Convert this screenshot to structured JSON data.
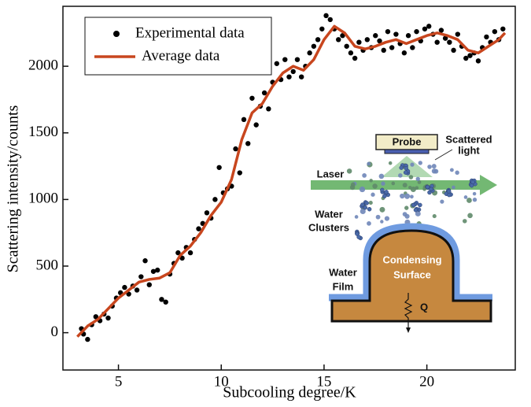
{
  "chart_data": {
    "type": "scatter-line",
    "x_label": "Subcooling degree/K",
    "y_label": "Scattering intensity/counts",
    "xlim": [
      2.3,
      24.3
    ],
    "ylim": [
      -280,
      2450
    ],
    "xticks": [
      5,
      10,
      15,
      20
    ],
    "yticks": [
      0,
      500,
      1000,
      1500,
      2000
    ],
    "legend": "top-left",
    "series": [
      {
        "name": "Experimental data",
        "type": "scatter",
        "color": "#000000",
        "x": [
          3.2,
          3.3,
          3.5,
          3.7,
          3.9,
          4.1,
          4.3,
          4.5,
          4.7,
          4.9,
          5.1,
          5.3,
          5.5,
          5.7,
          5.9,
          6.1,
          6.3,
          6.5,
          6.7,
          6.9,
          7.1,
          7.3,
          7.5,
          7.7,
          7.9,
          8.1,
          8.3,
          8.5,
          8.7,
          8.9,
          9.1,
          9.3,
          9.5,
          9.7,
          9.9,
          10.1,
          10.3,
          10.5,
          10.7,
          10.9,
          11.1,
          11.3,
          11.5,
          11.7,
          11.9,
          12.1,
          12.3,
          12.5,
          12.7,
          12.9,
          13.1,
          13.3,
          13.5,
          13.7,
          13.9,
          14.1,
          14.3,
          14.5,
          14.7,
          14.9,
          15.1,
          15.3,
          15.5,
          15.7,
          15.9,
          16.1,
          16.3,
          16.5,
          16.7,
          16.9,
          17.1,
          17.3,
          17.5,
          17.7,
          17.9,
          18.1,
          18.3,
          18.5,
          18.7,
          18.9,
          19.1,
          19.3,
          19.5,
          19.7,
          19.9,
          20.1,
          20.3,
          20.5,
          20.7,
          20.9,
          21.1,
          21.3,
          21.5,
          21.7,
          21.9,
          22.1,
          22.3,
          22.5,
          22.7,
          22.9,
          23.1,
          23.3,
          23.5,
          23.7
        ],
        "values": [
          30,
          -10,
          -50,
          60,
          120,
          90,
          140,
          110,
          200,
          260,
          300,
          340,
          290,
          350,
          320,
          420,
          540,
          360,
          460,
          470,
          250,
          230,
          440,
          520,
          600,
          560,
          640,
          600,
          700,
          780,
          820,
          900,
          860,
          1000,
          1240,
          1050,
          1080,
          1100,
          1380,
          1200,
          1600,
          1420,
          1760,
          1560,
          1700,
          1800,
          1680,
          1880,
          2020,
          1900,
          2050,
          1920,
          1960,
          2050,
          1920,
          2000,
          2100,
          2150,
          2200,
          2280,
          2380,
          2350,
          2280,
          2200,
          2230,
          2150,
          2100,
          2060,
          2180,
          2120,
          2200,
          2140,
          2230,
          2190,
          2120,
          2260,
          2140,
          2240,
          2170,
          2100,
          2230,
          2140,
          2260,
          2190,
          2280,
          2300,
          2240,
          2180,
          2270,
          2210,
          2180,
          2120,
          2240,
          2150,
          2060,
          2080,
          2100,
          2040,
          2140,
          2220,
          2180,
          2260,
          2200,
          2280
        ]
      },
      {
        "name": "Average data",
        "type": "line",
        "color": "#c8461e",
        "x": [
          3.0,
          3.5,
          4.0,
          4.5,
          5.0,
          5.5,
          6.0,
          6.5,
          7.0,
          7.5,
          8.0,
          8.5,
          9.0,
          9.5,
          10.0,
          10.5,
          11.0,
          11.5,
          12.0,
          12.5,
          13.0,
          13.5,
          14.0,
          14.5,
          15.0,
          15.5,
          16.0,
          16.5,
          17.0,
          17.5,
          18.0,
          18.5,
          19.0,
          19.5,
          20.0,
          20.5,
          21.0,
          21.5,
          22.0,
          22.5,
          23.0,
          23.5,
          23.8
        ],
        "values": [
          -30,
          50,
          100,
          180,
          260,
          320,
          380,
          400,
          410,
          450,
          580,
          650,
          750,
          880,
          980,
          1150,
          1450,
          1650,
          1720,
          1850,
          1950,
          2000,
          1970,
          2050,
          2200,
          2300,
          2250,
          2150,
          2130,
          2150,
          2180,
          2200,
          2170,
          2200,
          2230,
          2250,
          2230,
          2200,
          2120,
          2100,
          2150,
          2200,
          2250
        ]
      }
    ],
    "inset": {
      "probe": "Probe",
      "scattered_light": [
        "Scattered",
        "light"
      ],
      "laser": "Laser",
      "water_clusters": [
        "Water",
        "Clusters"
      ],
      "water_film": [
        "Water",
        "Film"
      ],
      "condensing_surface": [
        "Condensing",
        "Surface"
      ],
      "heat": "Q"
    }
  }
}
